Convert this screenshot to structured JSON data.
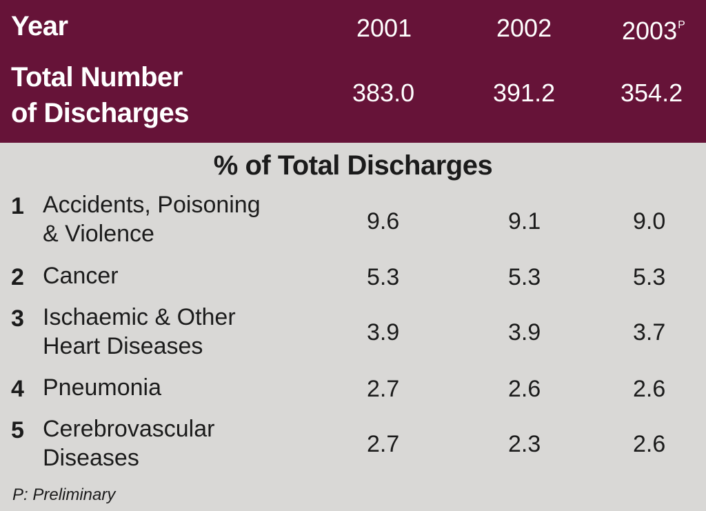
{
  "header": {
    "year_label": "Year",
    "years": [
      "2001",
      "2002",
      "2003"
    ],
    "year_marks": [
      "",
      "",
      "P"
    ],
    "total_label_line1": "Total Number",
    "total_label_line2": "of Discharges",
    "totals": [
      "383.0",
      "391.2",
      "354.2"
    ]
  },
  "body": {
    "title": "% of Total Discharges",
    "rows": [
      {
        "rank": "1",
        "label_lines": [
          "Accidents, Poisoning",
          "& Violence"
        ],
        "values": [
          "9.6",
          "9.1",
          "9.0"
        ]
      },
      {
        "rank": "2",
        "label_lines": [
          "Cancer",
          ""
        ],
        "values": [
          "5.3",
          "5.3",
          "5.3"
        ]
      },
      {
        "rank": "3",
        "label_lines": [
          "Ischaemic & Other",
          "Heart Diseases"
        ],
        "values": [
          "3.9",
          "3.9",
          "3.7"
        ]
      },
      {
        "rank": "4",
        "label_lines": [
          "Pneumonia",
          ""
        ],
        "values": [
          "2.7",
          "2.6",
          "2.6"
        ]
      },
      {
        "rank": "5",
        "label_lines": [
          "Cerebrovascular",
          "Diseases"
        ],
        "values": [
          "2.7",
          "2.3",
          "2.6"
        ]
      }
    ]
  },
  "note": "P: Preliminary",
  "colors": {
    "header_bg": "#661338",
    "body_bg": "#d9d8d6",
    "header_text": "#ffffff",
    "body_text": "#1b1b1b"
  },
  "chart_data": {
    "type": "table",
    "columns": [
      "2001",
      "2002",
      "2003"
    ],
    "total_discharges": [
      383.0,
      391.2,
      354.2
    ],
    "rows": [
      {
        "rank": 1,
        "label": "Accidents, Poisoning & Violence",
        "values": [
          9.6,
          9.1,
          9.0
        ]
      },
      {
        "rank": 2,
        "label": "Cancer",
        "values": [
          5.3,
          5.3,
          5.3
        ]
      },
      {
        "rank": 3,
        "label": "Ischaemic & Other Heart Diseases",
        "values": [
          3.9,
          3.9,
          3.7
        ]
      },
      {
        "rank": 4,
        "label": "Pneumonia",
        "values": [
          2.7,
          2.6,
          2.6
        ]
      },
      {
        "rank": 5,
        "label": "Cerebrovascular Diseases",
        "values": [
          2.7,
          2.3,
          2.6
        ]
      }
    ]
  }
}
